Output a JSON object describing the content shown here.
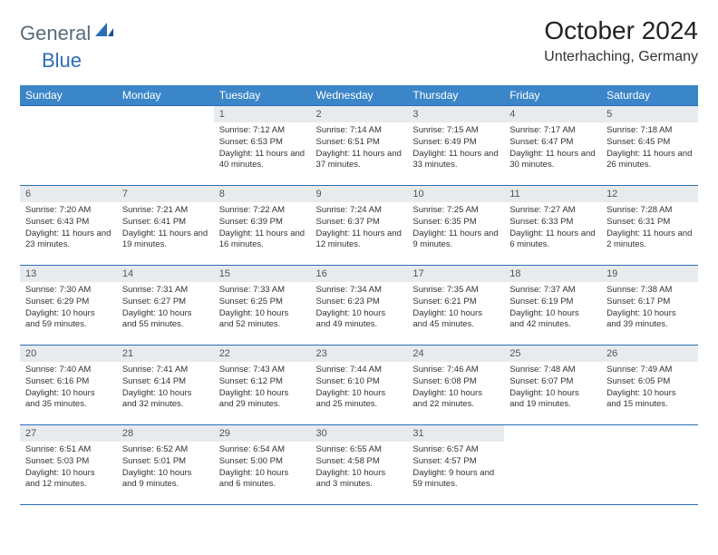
{
  "logo": {
    "part1": "General",
    "part2": "Blue"
  },
  "title": "October 2024",
  "location": "Unterhaching, Germany",
  "colors": {
    "header_bg": "#3b86c8",
    "header_text": "#ffffff",
    "border": "#2a6db8",
    "daynum_bg": "#e8ebed",
    "logo_gray": "#5a6b7a",
    "logo_blue": "#2a6db8"
  },
  "weekdays": [
    "Sunday",
    "Monday",
    "Tuesday",
    "Wednesday",
    "Thursday",
    "Friday",
    "Saturday"
  ],
  "weeks": [
    [
      null,
      null,
      {
        "n": "1",
        "sr": "7:12 AM",
        "ss": "6:53 PM",
        "dl": "11 hours and 40 minutes."
      },
      {
        "n": "2",
        "sr": "7:14 AM",
        "ss": "6:51 PM",
        "dl": "11 hours and 37 minutes."
      },
      {
        "n": "3",
        "sr": "7:15 AM",
        "ss": "6:49 PM",
        "dl": "11 hours and 33 minutes."
      },
      {
        "n": "4",
        "sr": "7:17 AM",
        "ss": "6:47 PM",
        "dl": "11 hours and 30 minutes."
      },
      {
        "n": "5",
        "sr": "7:18 AM",
        "ss": "6:45 PM",
        "dl": "11 hours and 26 minutes."
      }
    ],
    [
      {
        "n": "6",
        "sr": "7:20 AM",
        "ss": "6:43 PM",
        "dl": "11 hours and 23 minutes."
      },
      {
        "n": "7",
        "sr": "7:21 AM",
        "ss": "6:41 PM",
        "dl": "11 hours and 19 minutes."
      },
      {
        "n": "8",
        "sr": "7:22 AM",
        "ss": "6:39 PM",
        "dl": "11 hours and 16 minutes."
      },
      {
        "n": "9",
        "sr": "7:24 AM",
        "ss": "6:37 PM",
        "dl": "11 hours and 12 minutes."
      },
      {
        "n": "10",
        "sr": "7:25 AM",
        "ss": "6:35 PM",
        "dl": "11 hours and 9 minutes."
      },
      {
        "n": "11",
        "sr": "7:27 AM",
        "ss": "6:33 PM",
        "dl": "11 hours and 6 minutes."
      },
      {
        "n": "12",
        "sr": "7:28 AM",
        "ss": "6:31 PM",
        "dl": "11 hours and 2 minutes."
      }
    ],
    [
      {
        "n": "13",
        "sr": "7:30 AM",
        "ss": "6:29 PM",
        "dl": "10 hours and 59 minutes."
      },
      {
        "n": "14",
        "sr": "7:31 AM",
        "ss": "6:27 PM",
        "dl": "10 hours and 55 minutes."
      },
      {
        "n": "15",
        "sr": "7:33 AM",
        "ss": "6:25 PM",
        "dl": "10 hours and 52 minutes."
      },
      {
        "n": "16",
        "sr": "7:34 AM",
        "ss": "6:23 PM",
        "dl": "10 hours and 49 minutes."
      },
      {
        "n": "17",
        "sr": "7:35 AM",
        "ss": "6:21 PM",
        "dl": "10 hours and 45 minutes."
      },
      {
        "n": "18",
        "sr": "7:37 AM",
        "ss": "6:19 PM",
        "dl": "10 hours and 42 minutes."
      },
      {
        "n": "19",
        "sr": "7:38 AM",
        "ss": "6:17 PM",
        "dl": "10 hours and 39 minutes."
      }
    ],
    [
      {
        "n": "20",
        "sr": "7:40 AM",
        "ss": "6:16 PM",
        "dl": "10 hours and 35 minutes."
      },
      {
        "n": "21",
        "sr": "7:41 AM",
        "ss": "6:14 PM",
        "dl": "10 hours and 32 minutes."
      },
      {
        "n": "22",
        "sr": "7:43 AM",
        "ss": "6:12 PM",
        "dl": "10 hours and 29 minutes."
      },
      {
        "n": "23",
        "sr": "7:44 AM",
        "ss": "6:10 PM",
        "dl": "10 hours and 25 minutes."
      },
      {
        "n": "24",
        "sr": "7:46 AM",
        "ss": "6:08 PM",
        "dl": "10 hours and 22 minutes."
      },
      {
        "n": "25",
        "sr": "7:48 AM",
        "ss": "6:07 PM",
        "dl": "10 hours and 19 minutes."
      },
      {
        "n": "26",
        "sr": "7:49 AM",
        "ss": "6:05 PM",
        "dl": "10 hours and 15 minutes."
      }
    ],
    [
      {
        "n": "27",
        "sr": "6:51 AM",
        "ss": "5:03 PM",
        "dl": "10 hours and 12 minutes."
      },
      {
        "n": "28",
        "sr": "6:52 AM",
        "ss": "5:01 PM",
        "dl": "10 hours and 9 minutes."
      },
      {
        "n": "29",
        "sr": "6:54 AM",
        "ss": "5:00 PM",
        "dl": "10 hours and 6 minutes."
      },
      {
        "n": "30",
        "sr": "6:55 AM",
        "ss": "4:58 PM",
        "dl": "10 hours and 3 minutes."
      },
      {
        "n": "31",
        "sr": "6:57 AM",
        "ss": "4:57 PM",
        "dl": "9 hours and 59 minutes."
      },
      null,
      null
    ]
  ]
}
